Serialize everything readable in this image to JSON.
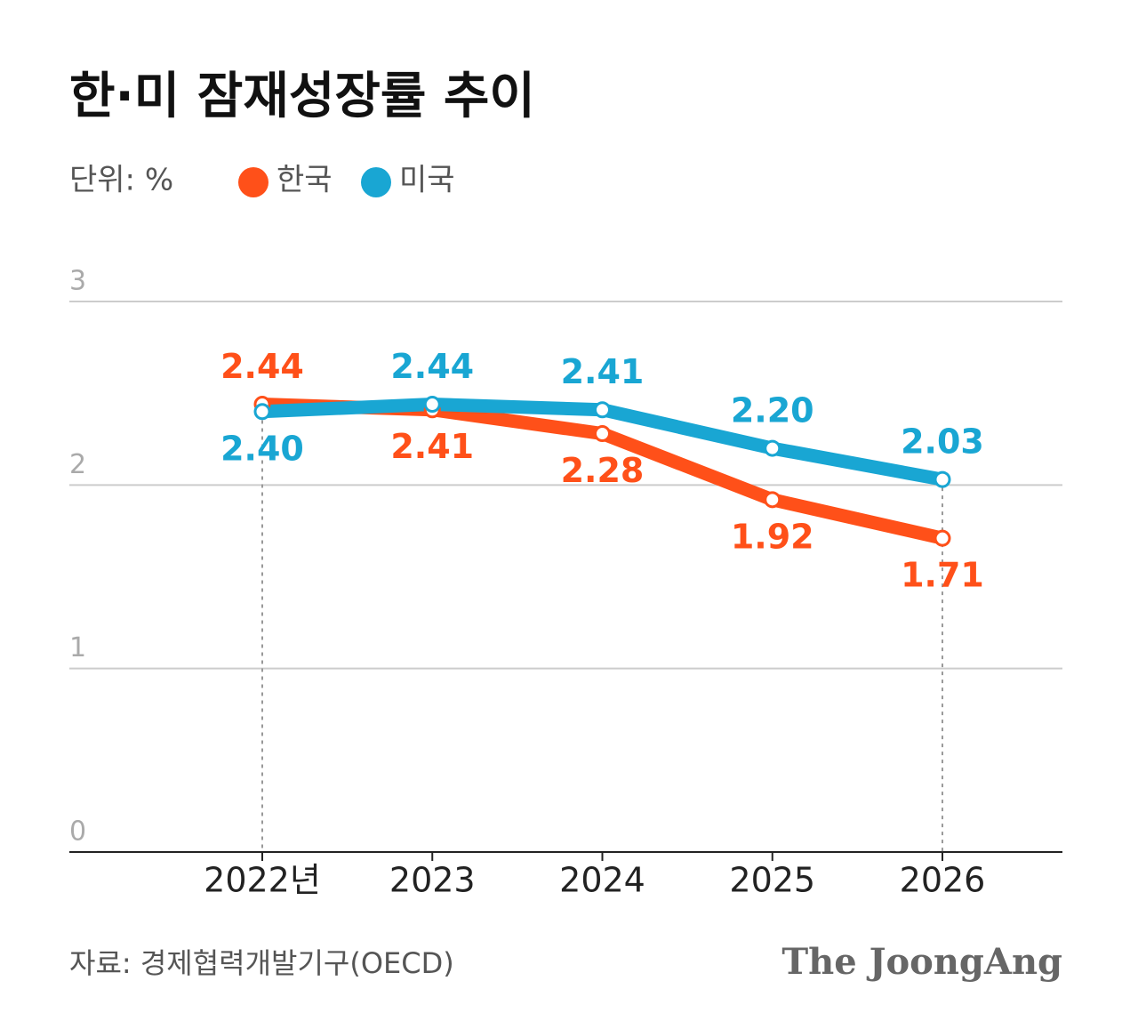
{
  "chart_data": {
    "type": "line",
    "title": "한·미 잠재성장률 추이",
    "unit": "단위: %",
    "categories": [
      "2022년",
      "2023",
      "2024",
      "2025",
      "2026"
    ],
    "series": [
      {
        "name": "한국",
        "color": "#ff5019",
        "values": [
          2.44,
          2.41,
          2.28,
          1.92,
          1.71
        ],
        "value_labels": [
          "2.44",
          "2.41",
          "2.28",
          "1.92",
          "1.71"
        ]
      },
      {
        "name": "미국",
        "color": "#19a6d3",
        "values": [
          2.4,
          2.44,
          2.41,
          2.2,
          2.03
        ],
        "value_labels": [
          "2.40",
          "2.44",
          "2.41",
          "2.20",
          "2.03"
        ]
      }
    ],
    "ylim": [
      0,
      3
    ],
    "yticks": [
      0,
      1,
      2,
      3
    ],
    "grid": true,
    "source": "자료: 경제협력개발기구(OECD)",
    "logo": "The JoongAng"
  }
}
